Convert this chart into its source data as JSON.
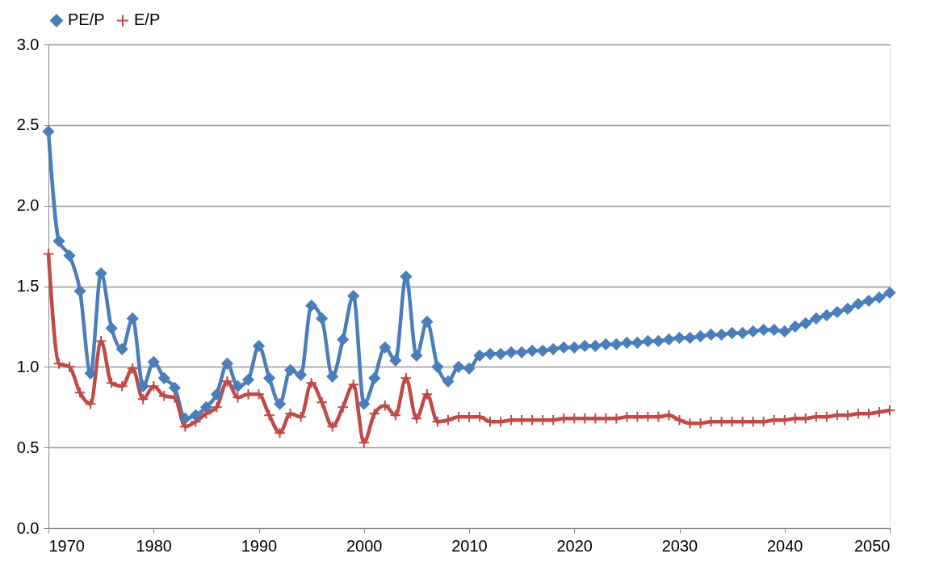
{
  "chart_data": {
    "type": "line",
    "x": [
      1970,
      1971,
      1972,
      1973,
      1974,
      1975,
      1976,
      1977,
      1978,
      1979,
      1980,
      1981,
      1982,
      1983,
      1984,
      1985,
      1986,
      1987,
      1988,
      1989,
      1990,
      1991,
      1992,
      1993,
      1994,
      1995,
      1996,
      1997,
      1998,
      1999,
      2000,
      2001,
      2002,
      2003,
      2004,
      2005,
      2006,
      2007,
      2008,
      2009,
      2010,
      2011,
      2012,
      2013,
      2014,
      2015,
      2016,
      2017,
      2018,
      2019,
      2020,
      2021,
      2022,
      2023,
      2024,
      2025,
      2026,
      2027,
      2028,
      2029,
      2030,
      2031,
      2032,
      2033,
      2034,
      2035,
      2036,
      2037,
      2038,
      2039,
      2040,
      2041,
      2042,
      2043,
      2044,
      2045,
      2046,
      2047,
      2048,
      2049,
      2050
    ],
    "series": [
      {
        "name": "PE/P",
        "color": "#4a7ebb",
        "marker": "diamond",
        "values": [
          2.46,
          1.78,
          1.69,
          1.47,
          0.96,
          1.58,
          1.24,
          1.11,
          1.3,
          0.88,
          1.03,
          0.93,
          0.87,
          0.68,
          0.7,
          0.75,
          0.83,
          1.02,
          0.88,
          0.92,
          1.13,
          0.93,
          0.77,
          0.98,
          0.95,
          1.38,
          1.3,
          0.94,
          1.17,
          1.44,
          0.77,
          0.93,
          1.12,
          1.04,
          1.56,
          1.07,
          1.28,
          1.0,
          0.91,
          1.0,
          0.99,
          1.07,
          1.08,
          1.08,
          1.09,
          1.09,
          1.1,
          1.1,
          1.11,
          1.12,
          1.12,
          1.13,
          1.13,
          1.14,
          1.14,
          1.15,
          1.15,
          1.16,
          1.16,
          1.17,
          1.18,
          1.18,
          1.19,
          1.2,
          1.2,
          1.21,
          1.21,
          1.22,
          1.23,
          1.23,
          1.22,
          1.25,
          1.27,
          1.3,
          1.32,
          1.34,
          1.36,
          1.39,
          1.41,
          1.43,
          1.46
        ]
      },
      {
        "name": "E/P",
        "color": "#be4b48",
        "marker": "cross",
        "values": [
          1.7,
          1.02,
          1.0,
          0.84,
          0.77,
          1.16,
          0.9,
          0.88,
          0.99,
          0.8,
          0.88,
          0.82,
          0.81,
          0.63,
          0.66,
          0.71,
          0.75,
          0.91,
          0.81,
          0.83,
          0.83,
          0.7,
          0.59,
          0.71,
          0.69,
          0.9,
          0.78,
          0.63,
          0.75,
          0.89,
          0.53,
          0.71,
          0.76,
          0.7,
          0.93,
          0.68,
          0.83,
          0.66,
          0.67,
          0.69,
          0.69,
          0.69,
          0.66,
          0.66,
          0.67,
          0.67,
          0.67,
          0.67,
          0.67,
          0.68,
          0.68,
          0.68,
          0.68,
          0.68,
          0.68,
          0.69,
          0.69,
          0.69,
          0.69,
          0.7,
          0.67,
          0.65,
          0.65,
          0.66,
          0.66,
          0.66,
          0.66,
          0.66,
          0.66,
          0.67,
          0.67,
          0.68,
          0.68,
          0.69,
          0.69,
          0.7,
          0.7,
          0.71,
          0.71,
          0.72,
          0.73
        ]
      }
    ],
    "xlim": [
      1970,
      2050
    ],
    "xticks": [
      1970,
      1980,
      1990,
      2000,
      2010,
      2020,
      2030,
      2040,
      2050
    ],
    "ylim": [
      0,
      3
    ],
    "yticks": [
      {
        "value": 0,
        "label": "0.0"
      },
      0.5,
      {
        "value": 1,
        "label": "1.0"
      },
      1.5,
      {
        "value": 2,
        "label": "2.0"
      },
      2.5,
      {
        "value": 3,
        "label": "3.0"
      }
    ],
    "grid": "y",
    "legend": "top",
    "line_style": "solid"
  }
}
